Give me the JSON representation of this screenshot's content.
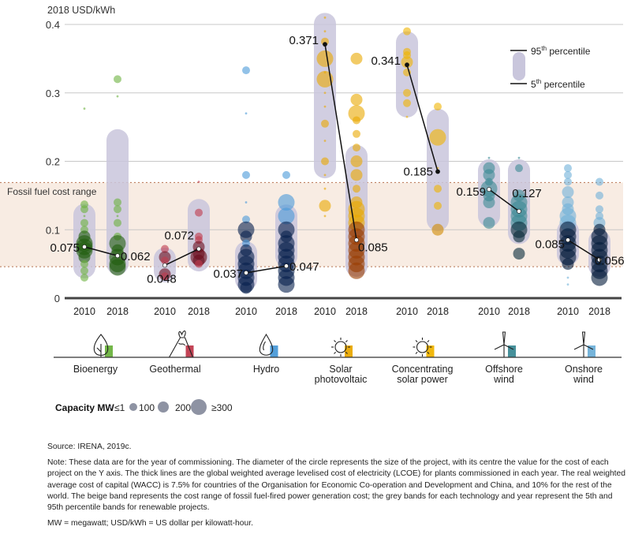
{
  "chart_data": {
    "type": "scatter",
    "ylabel": "2018 USD/kWh",
    "ylim": [
      0,
      0.4
    ],
    "yticks": [
      "0",
      "0.1",
      "0.2",
      "0.3",
      "0.4"
    ],
    "grid": true,
    "fossil_range": {
      "label": "Fossil fuel cost range",
      "low": 0.046,
      "high": 0.169
    },
    "percentile_legend": {
      "p95": "95",
      "p95_sup": "th",
      "p95_text": "percentile",
      "p5": "5",
      "p5_sup": "th",
      "p5_text": "percentile",
      "placement": "top-right"
    },
    "capacity_legend": {
      "title": "Capacity MW",
      "sizes": [
        "≤1",
        "100",
        "200",
        "≥300"
      ]
    },
    "technologies": [
      {
        "name": "Bioenergy",
        "name2": "",
        "icon": "leaf-icon",
        "color": "#6db33f",
        "dark": "#1f5e0e",
        "years": [
          {
            "year": "2010",
            "avg": 0.075,
            "avg_label": "0.075",
            "p5": 0.036,
            "p95": 0.131,
            "points": [
              [
                0.277,
                0
              ],
              [
                0.137,
                1
              ],
              [
                0.13,
                1
              ],
              [
                0.12,
                0
              ],
              [
                0.11,
                1
              ],
              [
                0.1,
                1
              ],
              [
                0.09,
                2
              ],
              [
                0.08,
                3
              ],
              [
                0.075,
                3
              ],
              [
                0.07,
                3
              ],
              [
                0.06,
                2
              ],
              [
                0.05,
                1
              ],
              [
                0.04,
                1
              ],
              [
                0.03,
                1
              ]
            ]
          },
          {
            "year": "2018",
            "avg": 0.062,
            "avg_label": "0.062",
            "p5": 0.041,
            "p95": 0.24,
            "points": [
              [
                0.32,
                1
              ],
              [
                0.295,
                0
              ],
              [
                0.14,
                1
              ],
              [
                0.13,
                1
              ],
              [
                0.12,
                0
              ],
              [
                0.11,
                1
              ],
              [
                0.09,
                1
              ],
              [
                0.08,
                3
              ],
              [
                0.07,
                2
              ],
              [
                0.06,
                3
              ],
              [
                0.05,
                3
              ],
              [
                0.045,
                3
              ]
            ]
          }
        ]
      },
      {
        "name": "Geothermal",
        "name2": "",
        "icon": "volcano-icon",
        "color": "#c03a4d",
        "dark": "#6a0c1c",
        "years": [
          {
            "year": "2010",
            "avg": 0.048,
            "avg_label": "0.048",
            "p5": 0.03,
            "p95": 0.067,
            "points": [
              [
                0.072,
                1
              ],
              [
                0.06,
                2
              ],
              [
                0.055,
                1
              ],
              [
                0.035,
                2
              ],
              [
                0.032,
                1
              ]
            ]
          },
          {
            "year": "2018",
            "avg": 0.072,
            "avg_label": "0.072",
            "p5": 0.046,
            "p95": 0.138,
            "points": [
              [
                0.17,
                0
              ],
              [
                0.125,
                1
              ],
              [
                0.09,
                1
              ],
              [
                0.085,
                1
              ],
              [
                0.075,
                2
              ],
              [
                0.065,
                2
              ],
              [
                0.06,
                3
              ],
              [
                0.055,
                2
              ],
              [
                0.05,
                1
              ]
            ]
          }
        ]
      },
      {
        "name": "Hydro",
        "name2": "",
        "icon": "water-drop-icon",
        "color": "#4a9ad8",
        "dark": "#061f4d",
        "years": [
          {
            "year": "2010",
            "avg": 0.037,
            "avg_label": "0.037",
            "p5": 0.018,
            "p95": 0.076,
            "points": [
              [
                0.333,
                1
              ],
              [
                0.27,
                0
              ],
              [
                0.18,
                1
              ],
              [
                0.14,
                0
              ],
              [
                0.115,
                1
              ],
              [
                0.1,
                3
              ],
              [
                0.09,
                2
              ],
              [
                0.08,
                1
              ],
              [
                0.07,
                2
              ],
              [
                0.06,
                3
              ],
              [
                0.05,
                3
              ],
              [
                0.04,
                3
              ],
              [
                0.03,
                3
              ],
              [
                0.02,
                3
              ],
              [
                0.015,
                2
              ]
            ]
          },
          {
            "year": "2018",
            "avg": 0.047,
            "avg_label": "0.047",
            "p5": 0.052,
            "p95": 0.13,
            "points": [
              [
                0.18,
                1
              ],
              [
                0.14,
                3
              ],
              [
                0.12,
                3
              ],
              [
                0.1,
                3
              ],
              [
                0.09,
                2
              ],
              [
                0.08,
                3
              ],
              [
                0.07,
                3
              ],
              [
                0.06,
                3
              ],
              [
                0.05,
                3
              ],
              [
                0.04,
                3
              ],
              [
                0.03,
                3
              ],
              [
                0.02,
                3
              ]
            ]
          }
        ]
      },
      {
        "name": "Solar",
        "name2": "photovoltaic",
        "icon": "sun-icon",
        "color": "#e9a800",
        "dark": "#9a3c00",
        "years": [
          {
            "year": "2010",
            "avg": 0.371,
            "avg_label": "0.371",
            "p5": 0.182,
            "p95": 0.41,
            "points": [
              [
                0.41,
                0
              ],
              [
                0.39,
                0
              ],
              [
                0.375,
                1
              ],
              [
                0.35,
                3
              ],
              [
                0.33,
                0
              ],
              [
                0.32,
                3
              ],
              [
                0.3,
                0
              ],
              [
                0.28,
                0
              ],
              [
                0.255,
                1
              ],
              [
                0.23,
                0
              ],
              [
                0.2,
                1
              ],
              [
                0.18,
                0
              ],
              [
                0.16,
                0
              ],
              [
                0.135,
                2
              ],
              [
                0.12,
                0
              ]
            ]
          },
          {
            "year": "2018",
            "avg": 0.085,
            "avg_label": "0.085",
            "p5": 0.038,
            "p95": 0.217,
            "points": [
              [
                0.35,
                2
              ],
              [
                0.29,
                2
              ],
              [
                0.27,
                3
              ],
              [
                0.26,
                1
              ],
              [
                0.24,
                1
              ],
              [
                0.22,
                1
              ],
              [
                0.2,
                2
              ],
              [
                0.18,
                2
              ],
              [
                0.16,
                1
              ],
              [
                0.14,
                2
              ],
              [
                0.13,
                3
              ],
              [
                0.12,
                3
              ],
              [
                0.11,
                3
              ],
              [
                0.1,
                3
              ],
              [
                0.09,
                3
              ],
              [
                0.08,
                3
              ],
              [
                0.07,
                3
              ],
              [
                0.06,
                3
              ],
              [
                0.05,
                3
              ],
              [
                0.04,
                3
              ]
            ]
          }
        ]
      },
      {
        "name": "Concentrating",
        "name2": "solar power",
        "icon": "sun-icon",
        "color": "#f0b400",
        "dark": "#d08a00",
        "years": [
          {
            "year": "2010",
            "avg": 0.341,
            "avg_label": "0.341",
            "p5": 0.271,
            "p95": 0.383,
            "points": [
              [
                0.39,
                1
              ],
              [
                0.36,
                1
              ],
              [
                0.355,
                1
              ],
              [
                0.345,
                2
              ],
              [
                0.33,
                1
              ],
              [
                0.3,
                1
              ],
              [
                0.285,
                1
              ],
              [
                0.265,
                0
              ]
            ]
          },
          {
            "year": "2018",
            "avg": 0.185,
            "avg_label": "0.185",
            "p5": 0.105,
            "p95": 0.27,
            "points": [
              [
                0.28,
                1
              ],
              [
                0.235,
                3
              ],
              [
                0.19,
                0
              ],
              [
                0.16,
                1
              ],
              [
                0.135,
                1
              ],
              [
                0.1,
                2
              ]
            ]
          }
        ]
      },
      {
        "name": "Offshore",
        "name2": "wind",
        "icon": "wind-turbine-icon",
        "color": "#3c8a95",
        "dark": "#062a38",
        "years": [
          {
            "year": "2010",
            "avg": 0.159,
            "avg_label": "0.159",
            "p5": 0.111,
            "p95": 0.196,
            "points": [
              [
                0.205,
                0
              ],
              [
                0.19,
                2
              ],
              [
                0.18,
                2
              ],
              [
                0.17,
                1
              ],
              [
                0.16,
                3
              ],
              [
                0.15,
                2
              ],
              [
                0.14,
                2
              ],
              [
                0.11,
                2
              ]
            ]
          },
          {
            "year": "2018",
            "avg": 0.127,
            "avg_label": "0.127",
            "p5": 0.086,
            "p95": 0.196,
            "points": [
              [
                0.205,
                0
              ],
              [
                0.19,
                1
              ],
              [
                0.15,
                2
              ],
              [
                0.14,
                3
              ],
              [
                0.13,
                3
              ],
              [
                0.12,
                3
              ],
              [
                0.11,
                3
              ],
              [
                0.1,
                3
              ],
              [
                0.09,
                2
              ],
              [
                0.065,
                2
              ]
            ]
          }
        ]
      },
      {
        "name": "Onshore",
        "name2": "wind",
        "icon": "wind-turbine-icon",
        "color": "#6fb0d8",
        "dark": "#041a3a",
        "years": [
          {
            "year": "2010",
            "avg": 0.085,
            "avg_label": "0.085",
            "p5": 0.055,
            "p95": 0.107,
            "points": [
              [
                0.19,
                1
              ],
              [
                0.18,
                1
              ],
              [
                0.17,
                1
              ],
              [
                0.155,
                2
              ],
              [
                0.14,
                2
              ],
              [
                0.13,
                2
              ],
              [
                0.12,
                3
              ],
              [
                0.11,
                3
              ],
              [
                0.1,
                3
              ],
              [
                0.09,
                3
              ],
              [
                0.08,
                3
              ],
              [
                0.07,
                3
              ],
              [
                0.06,
                3
              ],
              [
                0.05,
                2
              ],
              [
                0.03,
                0
              ],
              [
                0.02,
                0
              ]
            ]
          },
          {
            "year": "2018",
            "avg": 0.056,
            "avg_label": "0.056",
            "p5": 0.038,
            "p95": 0.093,
            "points": [
              [
                0.17,
                1
              ],
              [
                0.15,
                1
              ],
              [
                0.13,
                1
              ],
              [
                0.12,
                1
              ],
              [
                0.11,
                2
              ],
              [
                0.1,
                2
              ],
              [
                0.09,
                3
              ],
              [
                0.08,
                3
              ],
              [
                0.07,
                3
              ],
              [
                0.06,
                3
              ],
              [
                0.05,
                3
              ],
              [
                0.04,
                3
              ],
              [
                0.03,
                3
              ]
            ]
          }
        ]
      }
    ],
    "colors": {
      "band": "#c9c6dc",
      "fossil": "#f8ece3",
      "fossil_line": "#b5704f",
      "grid": "#c8c8c8",
      "axis": "#444444",
      "legend_bubble": "#8e93a3"
    }
  },
  "notes": {
    "source": "Source: IRENA, 2019c.",
    "note": "Note: These data are for the year of commissioning. The diameter of the circle represents the size of the project, with its centre the value for the cost of each project on the Y axis. The thick lines are the global weighted average levelised cost of electricity (LCOE) for plants commissioned in each year. The real weighted average cost of capital (WACC) is 7.5% for countries of the Organisation for Economic Co-operation and Development and China, and 10% for the rest of the world. The beige band represents the cost range of fossil fuel-fired power generation cost; the grey bands for each technology and year represent the 5th and 95th percentile bands for renewable projects.",
    "abbrev": "MW = megawatt; USD/kWh = US dollar per kilowatt-hour."
  }
}
